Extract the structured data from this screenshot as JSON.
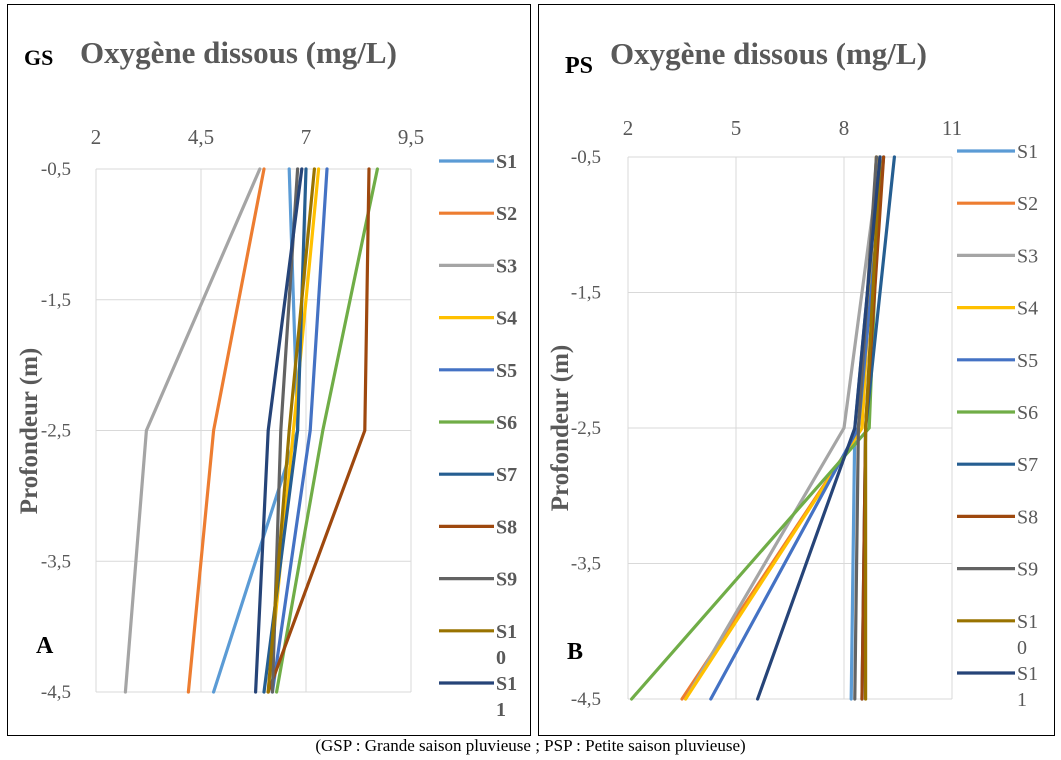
{
  "caption": "(GSP : Grande saison pluvieuse ; PSP : Petite saison pluvieuse)",
  "chart_data": [
    {
      "type": "line",
      "panel_label": "A",
      "season_tag": "GS",
      "title": "Oxygène dissous (mg/L)",
      "ylabel": "Profondeur (m)",
      "xlabel": "",
      "x_ticks": [
        "2",
        "4,5",
        "7",
        "9,5"
      ],
      "y_ticks": [
        "-0,5",
        "-1,5",
        "-2,5",
        "-3,5",
        "-4,5"
      ],
      "xlim": [
        2,
        9.5
      ],
      "ylim": [
        -4.5,
        -0.5
      ],
      "depths": [
        -0.5,
        -2.5,
        -4.5
      ],
      "grid": true,
      "legend_position": "right",
      "legend_bold": true,
      "series": [
        {
          "name": "S1",
          "color": "#5B9BD5",
          "values": [
            6.6,
            6.8,
            4.8
          ]
        },
        {
          "name": "S2",
          "color": "#ED7D31",
          "values": [
            6.0,
            4.8,
            4.2
          ]
        },
        {
          "name": "S3",
          "color": "#A5A5A5",
          "values": [
            5.9,
            3.2,
            2.7
          ]
        },
        {
          "name": "S4",
          "color": "#FFC000",
          "values": [
            7.3,
            6.7,
            6.1
          ]
        },
        {
          "name": "S5",
          "color": "#4472C4",
          "values": [
            7.5,
            7.1,
            6.2
          ]
        },
        {
          "name": "S6",
          "color": "#70AD47",
          "values": [
            8.7,
            7.4,
            6.3
          ]
        },
        {
          "name": "S7",
          "color": "#255E91",
          "values": [
            7.0,
            6.8,
            6.0
          ]
        },
        {
          "name": "S8",
          "color": "#9E480E",
          "values": [
            8.5,
            8.4,
            6.1
          ]
        },
        {
          "name": "S9",
          "color": "#636363",
          "values": [
            6.8,
            6.4,
            6.2
          ]
        },
        {
          "name": "S10",
          "color": "#997300",
          "values": [
            7.2,
            6.6,
            6.1
          ]
        },
        {
          "name": "S11",
          "color": "#264478",
          "values": [
            6.9,
            6.1,
            5.8
          ]
        }
      ]
    },
    {
      "type": "line",
      "panel_label": "B",
      "season_tag": "PS",
      "title": "Oxygène dissous (mg/L)",
      "ylabel": "Profondeur (m)",
      "xlabel": "",
      "x_ticks": [
        "2",
        "5",
        "8",
        "11"
      ],
      "y_ticks": [
        "-0,5",
        "-1,5",
        "-2,5",
        "-3,5",
        "-4,5"
      ],
      "xlim": [
        2,
        11
      ],
      "ylim": [
        -4.5,
        -0.5
      ],
      "depths": [
        -0.5,
        -2.5,
        -4.5
      ],
      "grid": true,
      "legend_position": "right",
      "legend_bold": false,
      "series": [
        {
          "name": "S1",
          "color": "#5B9BD5",
          "values": [
            9.0,
            8.3,
            8.2
          ]
        },
        {
          "name": "S2",
          "color": "#ED7D31",
          "values": [
            8.9,
            8.5,
            3.5
          ]
        },
        {
          "name": "S3",
          "color": "#A5A5A5",
          "values": [
            9.0,
            8.0,
            3.6
          ]
        },
        {
          "name": "S4",
          "color": "#FFC000",
          "values": [
            8.9,
            8.5,
            3.6
          ]
        },
        {
          "name": "S5",
          "color": "#4472C4",
          "values": [
            9.1,
            8.4,
            4.3
          ]
        },
        {
          "name": "S6",
          "color": "#70AD47",
          "values": [
            9.0,
            8.7,
            2.1
          ]
        },
        {
          "name": "S7",
          "color": "#255E91",
          "values": [
            9.4,
            8.6,
            8.5
          ]
        },
        {
          "name": "S8",
          "color": "#9E480E",
          "values": [
            9.1,
            8.6,
            8.5
          ]
        },
        {
          "name": "S9",
          "color": "#636363",
          "values": [
            8.9,
            8.4,
            8.3
          ]
        },
        {
          "name": "S10",
          "color": "#997300",
          "values": [
            9.0,
            8.6,
            8.6
          ]
        },
        {
          "name": "S11",
          "color": "#264478",
          "values": [
            9.0,
            8.3,
            5.6
          ]
        }
      ]
    }
  ]
}
